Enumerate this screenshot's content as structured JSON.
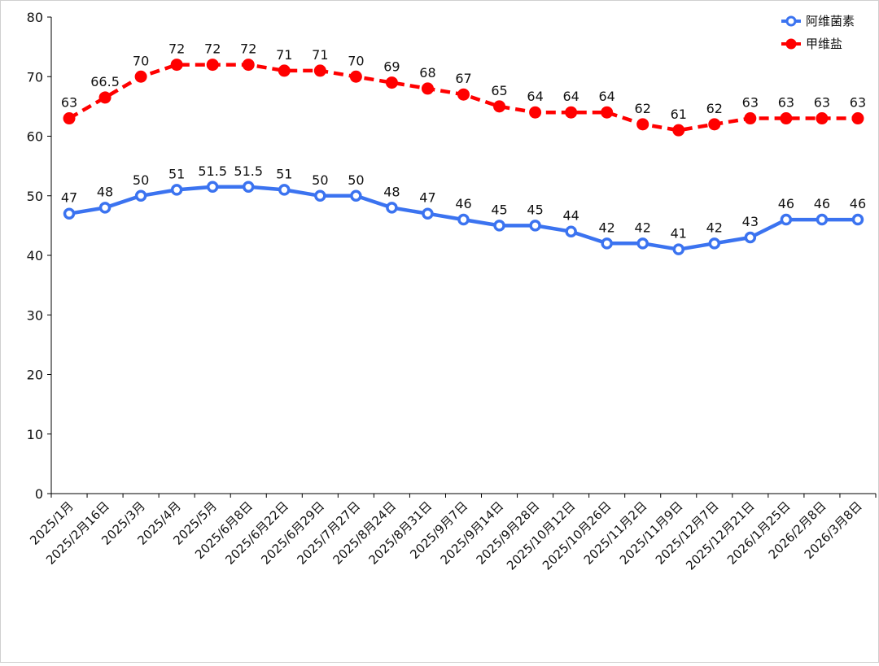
{
  "chart_data": {
    "type": "line",
    "title": "",
    "xlabel": "",
    "ylabel": "",
    "ylim": [
      0,
      80
    ],
    "yticks": [
      0,
      10,
      20,
      30,
      40,
      50,
      60,
      70,
      80
    ],
    "grid": false,
    "legend_position": "top-right",
    "categories": [
      "2025/1月",
      "2025/2月16日",
      "2025/3月",
      "2025/4月",
      "2025/5月",
      "2025/6月8日",
      "2025/6月22日",
      "2025/6月29日",
      "2025/7月27日",
      "2025/8月24日",
      "2025/8月31日",
      "2025/9月7日",
      "2025/9月14日",
      "2025/9月28日",
      "2025/10月12日",
      "2025/10月26日",
      "2025/11月2日",
      "2025/11月9日",
      "2025/12月7日",
      "2025/12月21日",
      "2026/1月25日",
      "2026/2月8日",
      "2026/3月8日"
    ],
    "series": [
      {
        "name": "阿维菌素",
        "color": "#3b73f0",
        "line_style": "solid",
        "marker": "hollow-circle",
        "values": [
          47,
          48,
          50,
          51,
          51.5,
          51.5,
          51,
          50,
          50,
          48,
          47,
          46,
          45,
          45,
          44,
          42,
          42,
          41,
          42,
          43,
          46,
          46,
          46
        ],
        "labels": [
          "47",
          "48",
          "50",
          "51",
          "51.5",
          "51.5",
          "51",
          "50",
          "50",
          "48",
          "47",
          "46",
          "45",
          "45",
          "44",
          "42",
          "42",
          "41",
          "42",
          "43",
          "46",
          "46",
          "46"
        ]
      },
      {
        "name": "甲维盐",
        "color": "#ff0000",
        "line_style": "dashed",
        "marker": "filled-circle",
        "values": [
          63,
          66.5,
          70,
          72,
          72,
          72,
          71,
          71,
          70,
          69,
          68,
          67,
          65,
          64,
          64,
          64,
          62,
          61,
          62,
          63,
          63,
          63,
          63
        ],
        "labels": [
          "63",
          "66.5",
          "70",
          "72",
          "72",
          "72",
          "71",
          "71",
          "70",
          "69",
          "68",
          "67",
          "65",
          "64",
          "64",
          "64",
          "62",
          "61",
          "62",
          "63",
          "63",
          "63",
          "63"
        ]
      }
    ]
  }
}
